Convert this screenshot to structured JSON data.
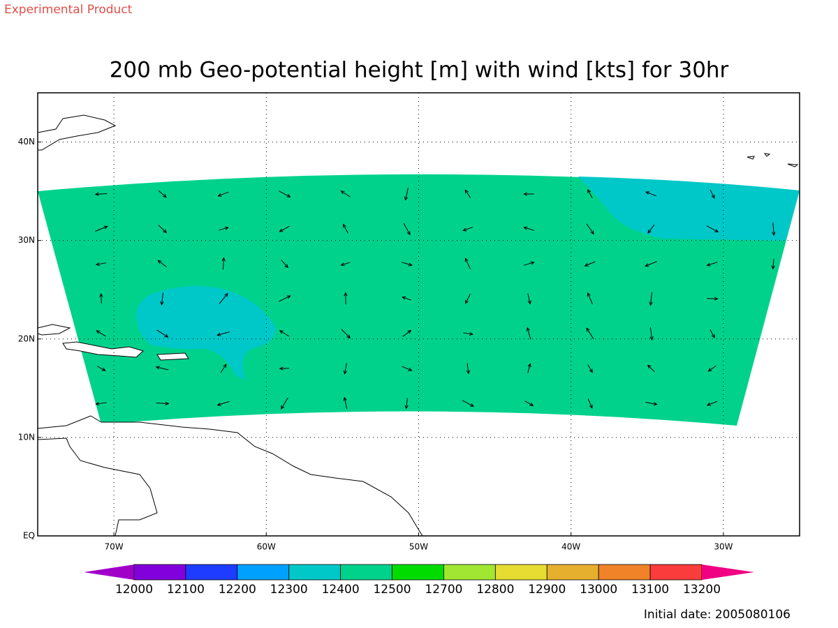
{
  "header": {
    "badge": "Experimental Product",
    "title": "200 mb Geo-potential height [m] with wind [kts] for 30hr"
  },
  "map": {
    "lon_ticks": [
      {
        "value": -70,
        "label": "70W"
      },
      {
        "value": -60,
        "label": "60W"
      },
      {
        "value": -50,
        "label": "50W"
      },
      {
        "value": -40,
        "label": "40W"
      },
      {
        "value": -30,
        "label": "30W"
      }
    ],
    "lat_ticks": [
      {
        "value": 0,
        "label": "EQ"
      },
      {
        "value": 10,
        "label": "10N"
      },
      {
        "value": 20,
        "label": "20N"
      },
      {
        "value": 30,
        "label": "30N"
      },
      {
        "value": 40,
        "label": "40N"
      }
    ]
  },
  "colorbar": {
    "levels": [
      12000,
      12100,
      12200,
      12300,
      12400,
      12500,
      12700,
      12800,
      12900,
      13000,
      13100,
      13200
    ],
    "colors": [
      "#a000c8",
      "#8200dc",
      "#1e3cff",
      "#00a0ff",
      "#00c8c8",
      "#00d28c",
      "#00dc00",
      "#a0e632",
      "#e6dc32",
      "#e6af2d",
      "#f08228",
      "#fa3c3c",
      "#f00082"
    ]
  },
  "footer": {
    "initial_date": "Initial date: 2005080106"
  }
}
